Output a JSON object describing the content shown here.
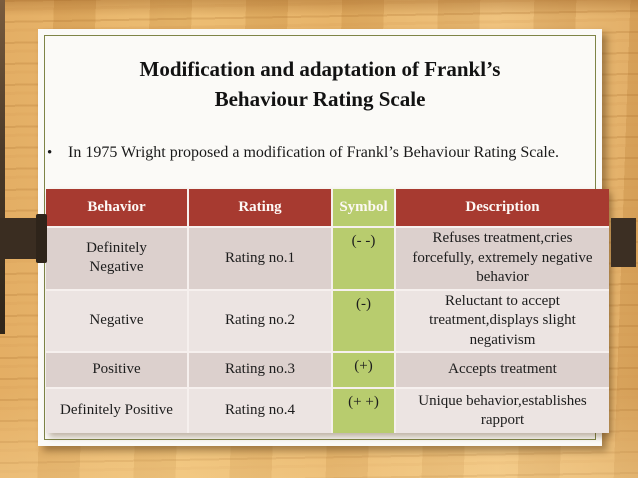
{
  "slide": {
    "title_line1": "Modification and adaptation of Frankl’s",
    "title_line2": "Behaviour Rating Scale",
    "bullet_marker": "•",
    "bullet_text": "In 1975 Wright proposed a modification of Frankl’s Behaviour Rating Scale."
  },
  "table": {
    "headers": [
      "Behavior",
      "Rating",
      "Symbol",
      "Description"
    ],
    "rows": [
      {
        "behavior": "Definitely Negative",
        "rating": "Rating no.1",
        "symbol": "(- -)",
        "description": "Refuses treatment,cries forcefully, extremely negative behavior"
      },
      {
        "behavior": "Negative",
        "rating": "Rating no.2",
        "symbol": "(-)",
        "description": "Reluctant to accept treatment,displays slight negativism"
      },
      {
        "behavior": "Positive",
        "rating": "Rating no.3",
        "symbol": "(+)",
        "description": "Accepts treatment"
      },
      {
        "behavior": "Definitely Positive",
        "rating": "Rating no.4",
        "symbol": "(+ +)",
        "description": "Unique behavior,establishes rapport"
      }
    ]
  },
  "colors": {
    "header_red": "#a73a30",
    "symbol_green": "#b8cc6e",
    "row_dark_pink": "#dcd0cd",
    "row_light_pink": "#ece4e2",
    "slide_white": "#fbfaf7",
    "slide_border_olive": "#7e8447",
    "wood_base": "#e7b366",
    "clamp_dark_brown": "#3a2d21",
    "header_text": "#fdf8f5",
    "body_text": "#1d1d1d"
  }
}
